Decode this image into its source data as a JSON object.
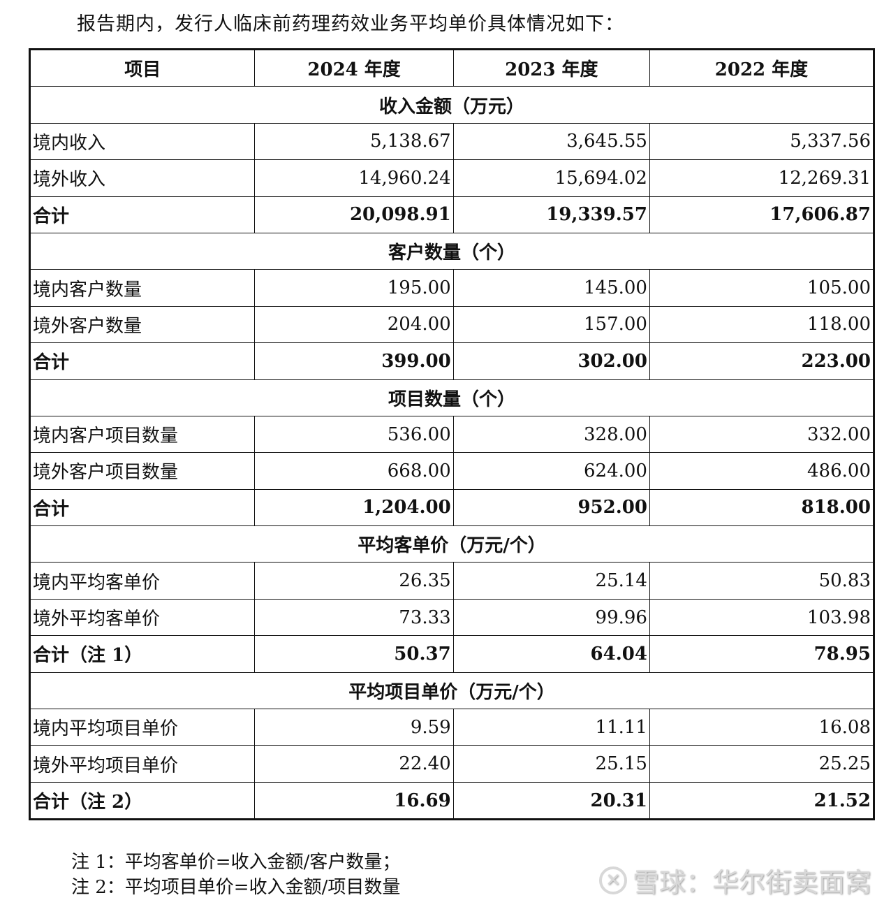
{
  "intro": "报告期内，发行人临床前药理药效业务平均单价具体情况如下：",
  "headers": [
    "项目",
    "2024 年度",
    "2023 年度",
    "2022 年度"
  ],
  "sections": [
    {
      "title": "收入金额（万元）",
      "rows": [
        {
          "label": "境内收入",
          "values": [
            "5,138.67",
            "3,645.55",
            "5,337.56"
          ]
        },
        {
          "label": "境外收入",
          "values": [
            "14,960.24",
            "15,694.02",
            "12,269.31"
          ]
        },
        {
          "label": "合计",
          "values": [
            "20,098.91",
            "19,339.57",
            "17,606.87"
          ],
          "total": true
        }
      ]
    },
    {
      "title": "客户数量（个）",
      "rows": [
        {
          "label": "境内客户数量",
          "values": [
            "195.00",
            "145.00",
            "105.00"
          ]
        },
        {
          "label": "境外客户数量",
          "values": [
            "204.00",
            "157.00",
            "118.00"
          ]
        },
        {
          "label": "合计",
          "values": [
            "399.00",
            "302.00",
            "223.00"
          ],
          "total": true
        }
      ]
    },
    {
      "title": "项目数量（个）",
      "rows": [
        {
          "label": "境内客户项目数量",
          "values": [
            "536.00",
            "328.00",
            "332.00"
          ]
        },
        {
          "label": "境外客户项目数量",
          "values": [
            "668.00",
            "624.00",
            "486.00"
          ]
        },
        {
          "label": "合计",
          "values": [
            "1,204.00",
            "952.00",
            "818.00"
          ],
          "total": true
        }
      ]
    },
    {
      "title": "平均客单价（万元/个）",
      "rows": [
        {
          "label": "境内平均客单价",
          "values": [
            "26.35",
            "25.14",
            "50.83"
          ]
        },
        {
          "label": "境外平均客单价",
          "values": [
            "73.33",
            "99.96",
            "103.98"
          ]
        },
        {
          "label": "合计（注 1）",
          "values": [
            "50.37",
            "64.04",
            "78.95"
          ],
          "total": true
        }
      ]
    },
    {
      "title": "平均项目单价（万元/个）",
      "rows": [
        {
          "label": "境内平均项目单价",
          "values": [
            "9.59",
            "11.11",
            "16.08"
          ]
        },
        {
          "label": "境外平均项目单价",
          "values": [
            "22.40",
            "25.15",
            "25.25"
          ]
        },
        {
          "label": "合计（注 2）",
          "values": [
            "16.69",
            "20.31",
            "21.52"
          ],
          "total": true
        }
      ]
    }
  ],
  "notes": [
    "注 1：平均客单价=收入金额/客户数量；",
    "注 2：平均项目单价=收入金额/项目数量"
  ],
  "watermark": "雪球：华尔街卖面窝"
}
